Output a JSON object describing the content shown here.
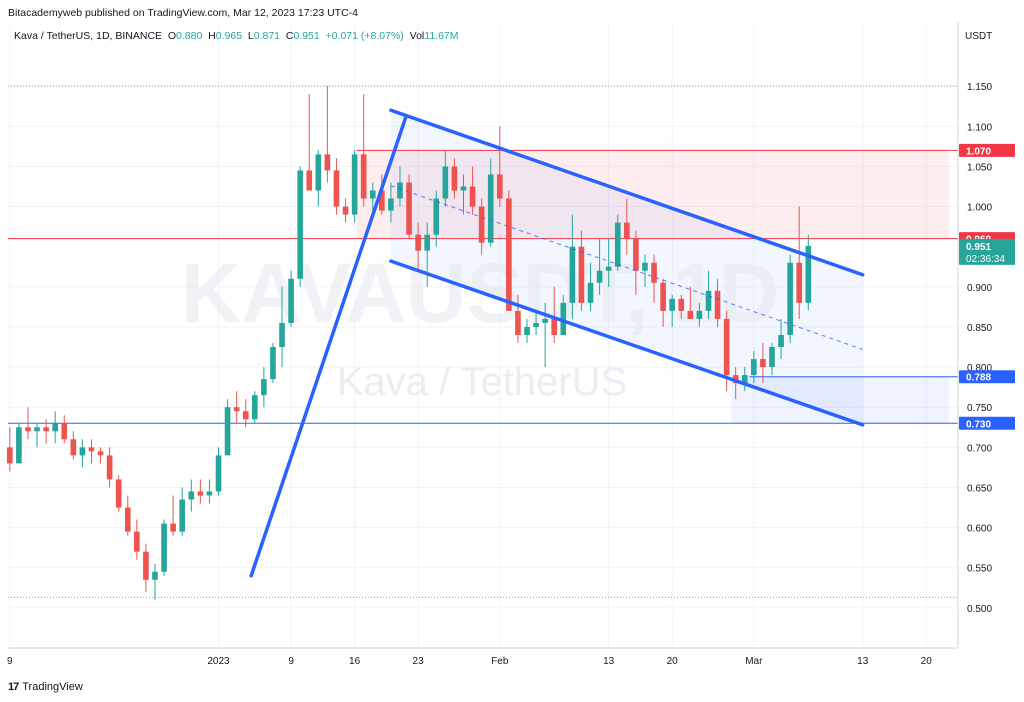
{
  "header": {
    "text": "Bitacademyweb published on TradingView.com, Mar 12, 2023 17:23 UTC-4"
  },
  "legend": {
    "symbol": "Kava / TetherUS, 1D, BINANCE",
    "open_k": "O",
    "open": "0.880",
    "high_k": "H",
    "high": "0.965",
    "low_k": "L",
    "low": "0.871",
    "close_k": "C",
    "close": "0.951",
    "change": "+0.071 (+8.07%)",
    "vol_k": "Vol",
    "vol": "11.67M"
  },
  "watermark": {
    "ticker": "KAVAUSDT, 1D",
    "name": "Kava / TetherUS"
  },
  "price_axis_unit": "USDT",
  "footer": {
    "logo": "17",
    "brand": "TradingView"
  },
  "colors": {
    "up": "#26a69a",
    "down": "#ef5350",
    "channel": "#2962ff",
    "resistance": "#f23645",
    "support": "#2962ff"
  },
  "chart_data": {
    "type": "candlestick",
    "ylim": [
      0.45,
      1.205
    ],
    "y_ticks": [
      "1.150",
      "1.100",
      "1.050",
      "1.000",
      "0.900",
      "0.850",
      "0.800",
      "0.750",
      "0.700",
      "0.650",
      "0.600",
      "0.550",
      "0.500"
    ],
    "y_tick_values": [
      1.15,
      1.1,
      1.05,
      1.0,
      0.9,
      0.85,
      0.8,
      0.75,
      0.7,
      0.65,
      0.6,
      0.55,
      0.5
    ],
    "x_ticks": [
      {
        "label": "9",
        "day": -23
      },
      {
        "label": "2023",
        "day": 0
      },
      {
        "label": "9",
        "day": 8
      },
      {
        "label": "16",
        "day": 15
      },
      {
        "label": "23",
        "day": 22
      },
      {
        "label": "Feb",
        "day": 31
      },
      {
        "label": "13",
        "day": 43
      },
      {
        "label": "20",
        "day": 50
      },
      {
        "label": "Mar",
        "day": 59
      },
      {
        "label": "13",
        "day": 71
      },
      {
        "label": "20",
        "day": 78
      }
    ],
    "x_range_days": [
      -23.2,
      81.5
    ],
    "candles": [
      [
        0.7,
        0.725,
        0.67,
        0.68
      ],
      [
        0.68,
        0.73,
        0.68,
        0.725
      ],
      [
        0.725,
        0.75,
        0.71,
        0.72
      ],
      [
        0.72,
        0.73,
        0.7,
        0.725
      ],
      [
        0.725,
        0.735,
        0.705,
        0.72
      ],
      [
        0.72,
        0.745,
        0.705,
        0.73
      ],
      [
        0.73,
        0.74,
        0.705,
        0.71
      ],
      [
        0.71,
        0.72,
        0.685,
        0.69
      ],
      [
        0.69,
        0.71,
        0.675,
        0.7
      ],
      [
        0.7,
        0.71,
        0.68,
        0.695
      ],
      [
        0.695,
        0.7,
        0.68,
        0.69
      ],
      [
        0.69,
        0.7,
        0.65,
        0.66
      ],
      [
        0.66,
        0.665,
        0.62,
        0.625
      ],
      [
        0.625,
        0.64,
        0.59,
        0.595
      ],
      [
        0.595,
        0.61,
        0.56,
        0.57
      ],
      [
        0.57,
        0.58,
        0.52,
        0.535
      ],
      [
        0.535,
        0.555,
        0.51,
        0.545
      ],
      [
        0.545,
        0.61,
        0.54,
        0.605
      ],
      [
        0.605,
        0.64,
        0.59,
        0.595
      ],
      [
        0.595,
        0.65,
        0.59,
        0.635
      ],
      [
        0.635,
        0.66,
        0.62,
        0.645
      ],
      [
        0.645,
        0.66,
        0.63,
        0.64
      ],
      [
        0.64,
        0.66,
        0.63,
        0.645
      ],
      [
        0.645,
        0.7,
        0.64,
        0.69
      ],
      [
        0.69,
        0.76,
        0.69,
        0.75
      ],
      [
        0.75,
        0.77,
        0.73,
        0.745
      ],
      [
        0.745,
        0.76,
        0.725,
        0.735
      ],
      [
        0.735,
        0.77,
        0.73,
        0.765
      ],
      [
        0.765,
        0.8,
        0.75,
        0.785
      ],
      [
        0.785,
        0.83,
        0.78,
        0.825
      ],
      [
        0.825,
        0.9,
        0.8,
        0.855
      ],
      [
        0.855,
        0.92,
        0.85,
        0.91
      ],
      [
        0.91,
        1.05,
        0.9,
        1.045
      ],
      [
        1.045,
        1.14,
        1.02,
        1.02
      ],
      [
        1.02,
        1.07,
        1.0,
        1.065
      ],
      [
        1.065,
        1.15,
        1.03,
        1.045
      ],
      [
        1.045,
        1.06,
        0.99,
        1.0
      ],
      [
        1.0,
        1.01,
        0.98,
        0.99
      ],
      [
        0.99,
        1.07,
        0.98,
        1.065
      ],
      [
        1.065,
        1.14,
        1.0,
        1.01
      ],
      [
        1.01,
        1.03,
        0.99,
        1.02
      ],
      [
        1.02,
        1.04,
        0.99,
        0.995
      ],
      [
        0.995,
        1.03,
        0.98,
        1.01
      ],
      [
        1.01,
        1.05,
        1.0,
        1.03
      ],
      [
        1.03,
        1.04,
        0.96,
        0.965
      ],
      [
        0.965,
        0.98,
        0.92,
        0.945
      ],
      [
        0.945,
        0.98,
        0.9,
        0.965
      ],
      [
        0.965,
        1.02,
        0.95,
        1.01
      ],
      [
        1.01,
        1.07,
        1.0,
        1.05
      ],
      [
        1.05,
        1.06,
        1.01,
        1.02
      ],
      [
        1.02,
        1.04,
        0.99,
        1.025
      ],
      [
        1.025,
        1.05,
        0.99,
        1.0
      ],
      [
        1.0,
        1.01,
        0.94,
        0.955
      ],
      [
        0.955,
        1.06,
        0.95,
        1.04
      ],
      [
        1.04,
        1.1,
        1.0,
        1.01
      ],
      [
        1.01,
        1.02,
        0.87,
        0.87
      ],
      [
        0.87,
        0.89,
        0.83,
        0.84
      ],
      [
        0.84,
        0.86,
        0.83,
        0.85
      ],
      [
        0.85,
        0.87,
        0.84,
        0.855
      ],
      [
        0.855,
        0.88,
        0.8,
        0.86
      ],
      [
        0.86,
        0.9,
        0.83,
        0.84
      ],
      [
        0.84,
        0.89,
        0.84,
        0.88
      ],
      [
        0.88,
        0.99,
        0.86,
        0.95
      ],
      [
        0.95,
        0.97,
        0.87,
        0.88
      ],
      [
        0.88,
        0.93,
        0.87,
        0.905
      ],
      [
        0.905,
        0.96,
        0.89,
        0.92
      ],
      [
        0.92,
        0.96,
        0.9,
        0.925
      ],
      [
        0.925,
        0.99,
        0.92,
        0.98
      ],
      [
        0.98,
        1.01,
        0.94,
        0.96
      ],
      [
        0.96,
        0.97,
        0.89,
        0.92
      ],
      [
        0.92,
        0.94,
        0.9,
        0.93
      ],
      [
        0.93,
        0.94,
        0.88,
        0.905
      ],
      [
        0.905,
        0.91,
        0.85,
        0.87
      ],
      [
        0.87,
        0.89,
        0.85,
        0.885
      ],
      [
        0.885,
        0.89,
        0.86,
        0.87
      ],
      [
        0.87,
        0.9,
        0.86,
        0.86
      ],
      [
        0.86,
        0.88,
        0.85,
        0.87
      ],
      [
        0.87,
        0.92,
        0.86,
        0.895
      ],
      [
        0.895,
        0.91,
        0.85,
        0.86
      ],
      [
        0.86,
        0.87,
        0.77,
        0.79
      ],
      [
        0.79,
        0.8,
        0.76,
        0.78
      ],
      [
        0.78,
        0.8,
        0.77,
        0.79
      ],
      [
        0.79,
        0.82,
        0.78,
        0.81
      ],
      [
        0.81,
        0.83,
        0.78,
        0.8
      ],
      [
        0.8,
        0.83,
        0.79,
        0.825
      ],
      [
        0.825,
        0.86,
        0.81,
        0.84
      ],
      [
        0.84,
        0.94,
        0.83,
        0.93
      ],
      [
        0.93,
        1.0,
        0.86,
        0.88
      ],
      [
        0.88,
        0.965,
        0.871,
        0.951
      ]
    ],
    "levels": [
      {
        "price": 1.07,
        "label": "1.070",
        "color": "#f23645"
      },
      {
        "price": 0.96,
        "label": "0.960",
        "color": "#f23645"
      },
      {
        "price": 0.788,
        "label": "0.788",
        "color": "#2962ff"
      },
      {
        "price": 0.73,
        "label": "0.730",
        "color": "#2962ff"
      }
    ],
    "last_price": {
      "label": "0.951",
      "countdown": "02:36:34"
    },
    "channel": {
      "upper": [
        [
          19,
          1.12
        ],
        [
          71,
          0.915
        ]
      ],
      "lower": [
        [
          19,
          0.932
        ],
        [
          71,
          0.728
        ]
      ],
      "mid": [
        [
          19,
          1.026
        ],
        [
          71,
          0.822
        ]
      ],
      "uptrend": [
        [
          3.6,
          0.54
        ],
        [
          20.6,
          1.11
        ]
      ]
    }
  }
}
